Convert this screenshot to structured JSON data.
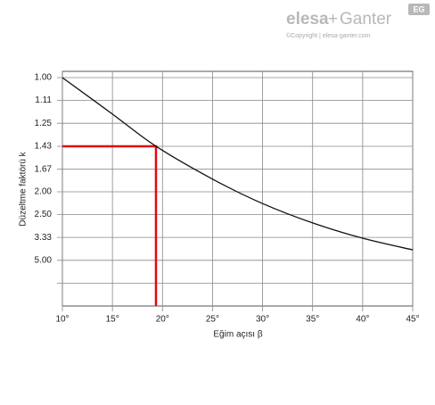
{
  "header": {
    "brand_left": "elesa",
    "brand_plus": "+",
    "brand_right": "Ganter",
    "badge": "EG",
    "copyright": "©Copyright | elesa-ganter.com"
  },
  "chart_data": {
    "type": "line",
    "x_label": "Eğim açısı β",
    "y_label": "Düzeltme faktörü k",
    "x": [
      10,
      15,
      19.35,
      25,
      30,
      35,
      40,
      45
    ],
    "series": [
      {
        "color": "#111111",
        "values": [
          1.0,
          1.19,
          1.43,
          1.8,
          2.23,
          2.75,
          3.37,
          4.07
        ]
      }
    ],
    "xlim": [
      10,
      45
    ],
    "xticks": [
      {
        "value": 10,
        "label": "10°"
      },
      {
        "value": 15,
        "label": "15°"
      },
      {
        "value": 20,
        "label": "20°"
      },
      {
        "value": 25,
        "label": "25°"
      },
      {
        "value": 30,
        "label": "30°"
      },
      {
        "value": 35,
        "label": "35°"
      },
      {
        "value": 40,
        "label": "40°"
      },
      {
        "value": 45,
        "label": "45°"
      }
    ],
    "yscale": "reciprocal",
    "ylim": [
      null,
      1.0
    ],
    "yticks": [
      {
        "value": 1.0,
        "label": "1.00"
      },
      1.11,
      1.25,
      1.43,
      1.67,
      {
        "value": 2.0,
        "label": "2.00"
      },
      {
        "value": 2.5,
        "label": "2.50"
      },
      3.33,
      {
        "value": 5.0,
        "label": "5.00"
      },
      {
        "value": 10,
        "label": null
      }
    ],
    "grid": true,
    "annotation": {
      "x": 19.35,
      "y": 1.43,
      "color": "#e30613"
    }
  }
}
